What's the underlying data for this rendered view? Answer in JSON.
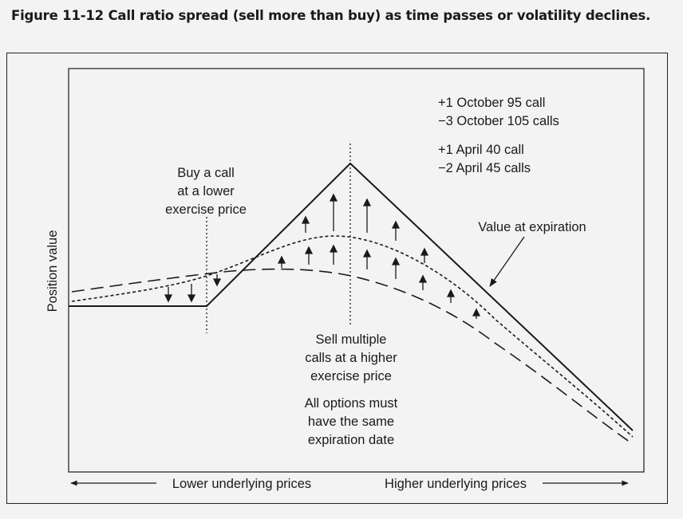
{
  "figure": {
    "caption": "Figure 11-12  Call ratio spread (sell more than buy) as time passes or volatility declines."
  },
  "diagram": {
    "y_axis_label": "Position value",
    "x_axis_left_label": "Lower underlying prices",
    "x_axis_right_label": "Higher underlying prices",
    "legend_lines": [
      "+1 October 95 call",
      "−3 October 105 calls",
      "+1 April 40 call",
      "−2 April 45 calls"
    ],
    "buy_call_note": [
      "Buy a call",
      "at a lower",
      "exercise price"
    ],
    "sell_calls_note": [
      "Sell multiple",
      "calls at a higher",
      "exercise price"
    ],
    "options_note": [
      "All options must",
      "have the same",
      "expiration date"
    ],
    "expiration_label": "Value at expiration"
  }
}
